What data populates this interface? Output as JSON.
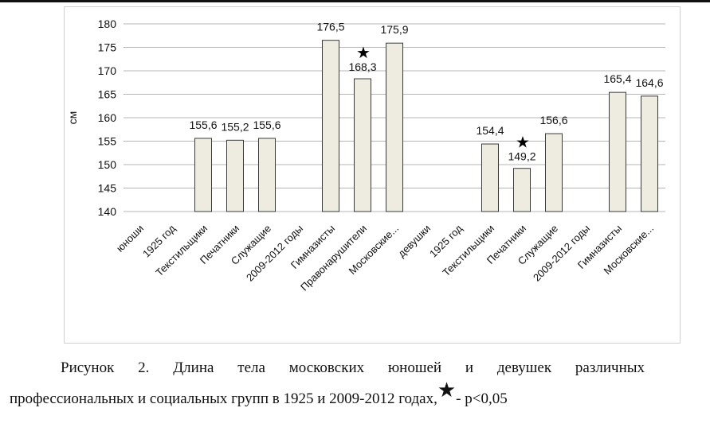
{
  "chart_data": {
    "type": "bar",
    "ylabel": "см",
    "ylim": [
      140,
      180
    ],
    "yticks": [
      140,
      145,
      150,
      155,
      160,
      165,
      170,
      175,
      180
    ],
    "categories": [
      "юноши",
      "1925 год",
      "Текстильщики",
      "Печатники",
      "Служащие",
      "2009-2012 годы",
      "Гимназисты",
      "Правонарушители",
      "Московские...",
      "девушки",
      "1925 год",
      "Текстильщики",
      "Печатники",
      "Служащие",
      "2009-2012 годы",
      "Гимназисты",
      "Московские..."
    ],
    "values": [
      null,
      null,
      155.6,
      155.2,
      155.6,
      null,
      176.5,
      168.3,
      175.9,
      null,
      null,
      154.4,
      149.2,
      156.6,
      null,
      165.4,
      164.6
    ],
    "data_labels": [
      "",
      "",
      "155,6",
      "155,2",
      "155,6",
      "",
      "176,5",
      "168,3",
      "175,9",
      "",
      "",
      "154,4",
      "149,2",
      "156,6",
      "",
      "165,4",
      "164,6"
    ],
    "significant": [
      false,
      false,
      false,
      false,
      false,
      false,
      false,
      true,
      false,
      false,
      false,
      false,
      true,
      false,
      false,
      false,
      false
    ],
    "significance_marker": "★",
    "grid": true,
    "colors": {
      "bar_fill": "#eeebe1",
      "bar_stroke": "#3a3a3a",
      "grid": "#b5b5b5"
    }
  },
  "caption": {
    "line1": "Рисунок 2. Длина тела московских юношей и девушек различных",
    "line2_text": "профессиональных и социальных групп в 1925 и 2009-2012 годах,",
    "line2_star": "★",
    "line2_suffix": "- p<0,05"
  }
}
